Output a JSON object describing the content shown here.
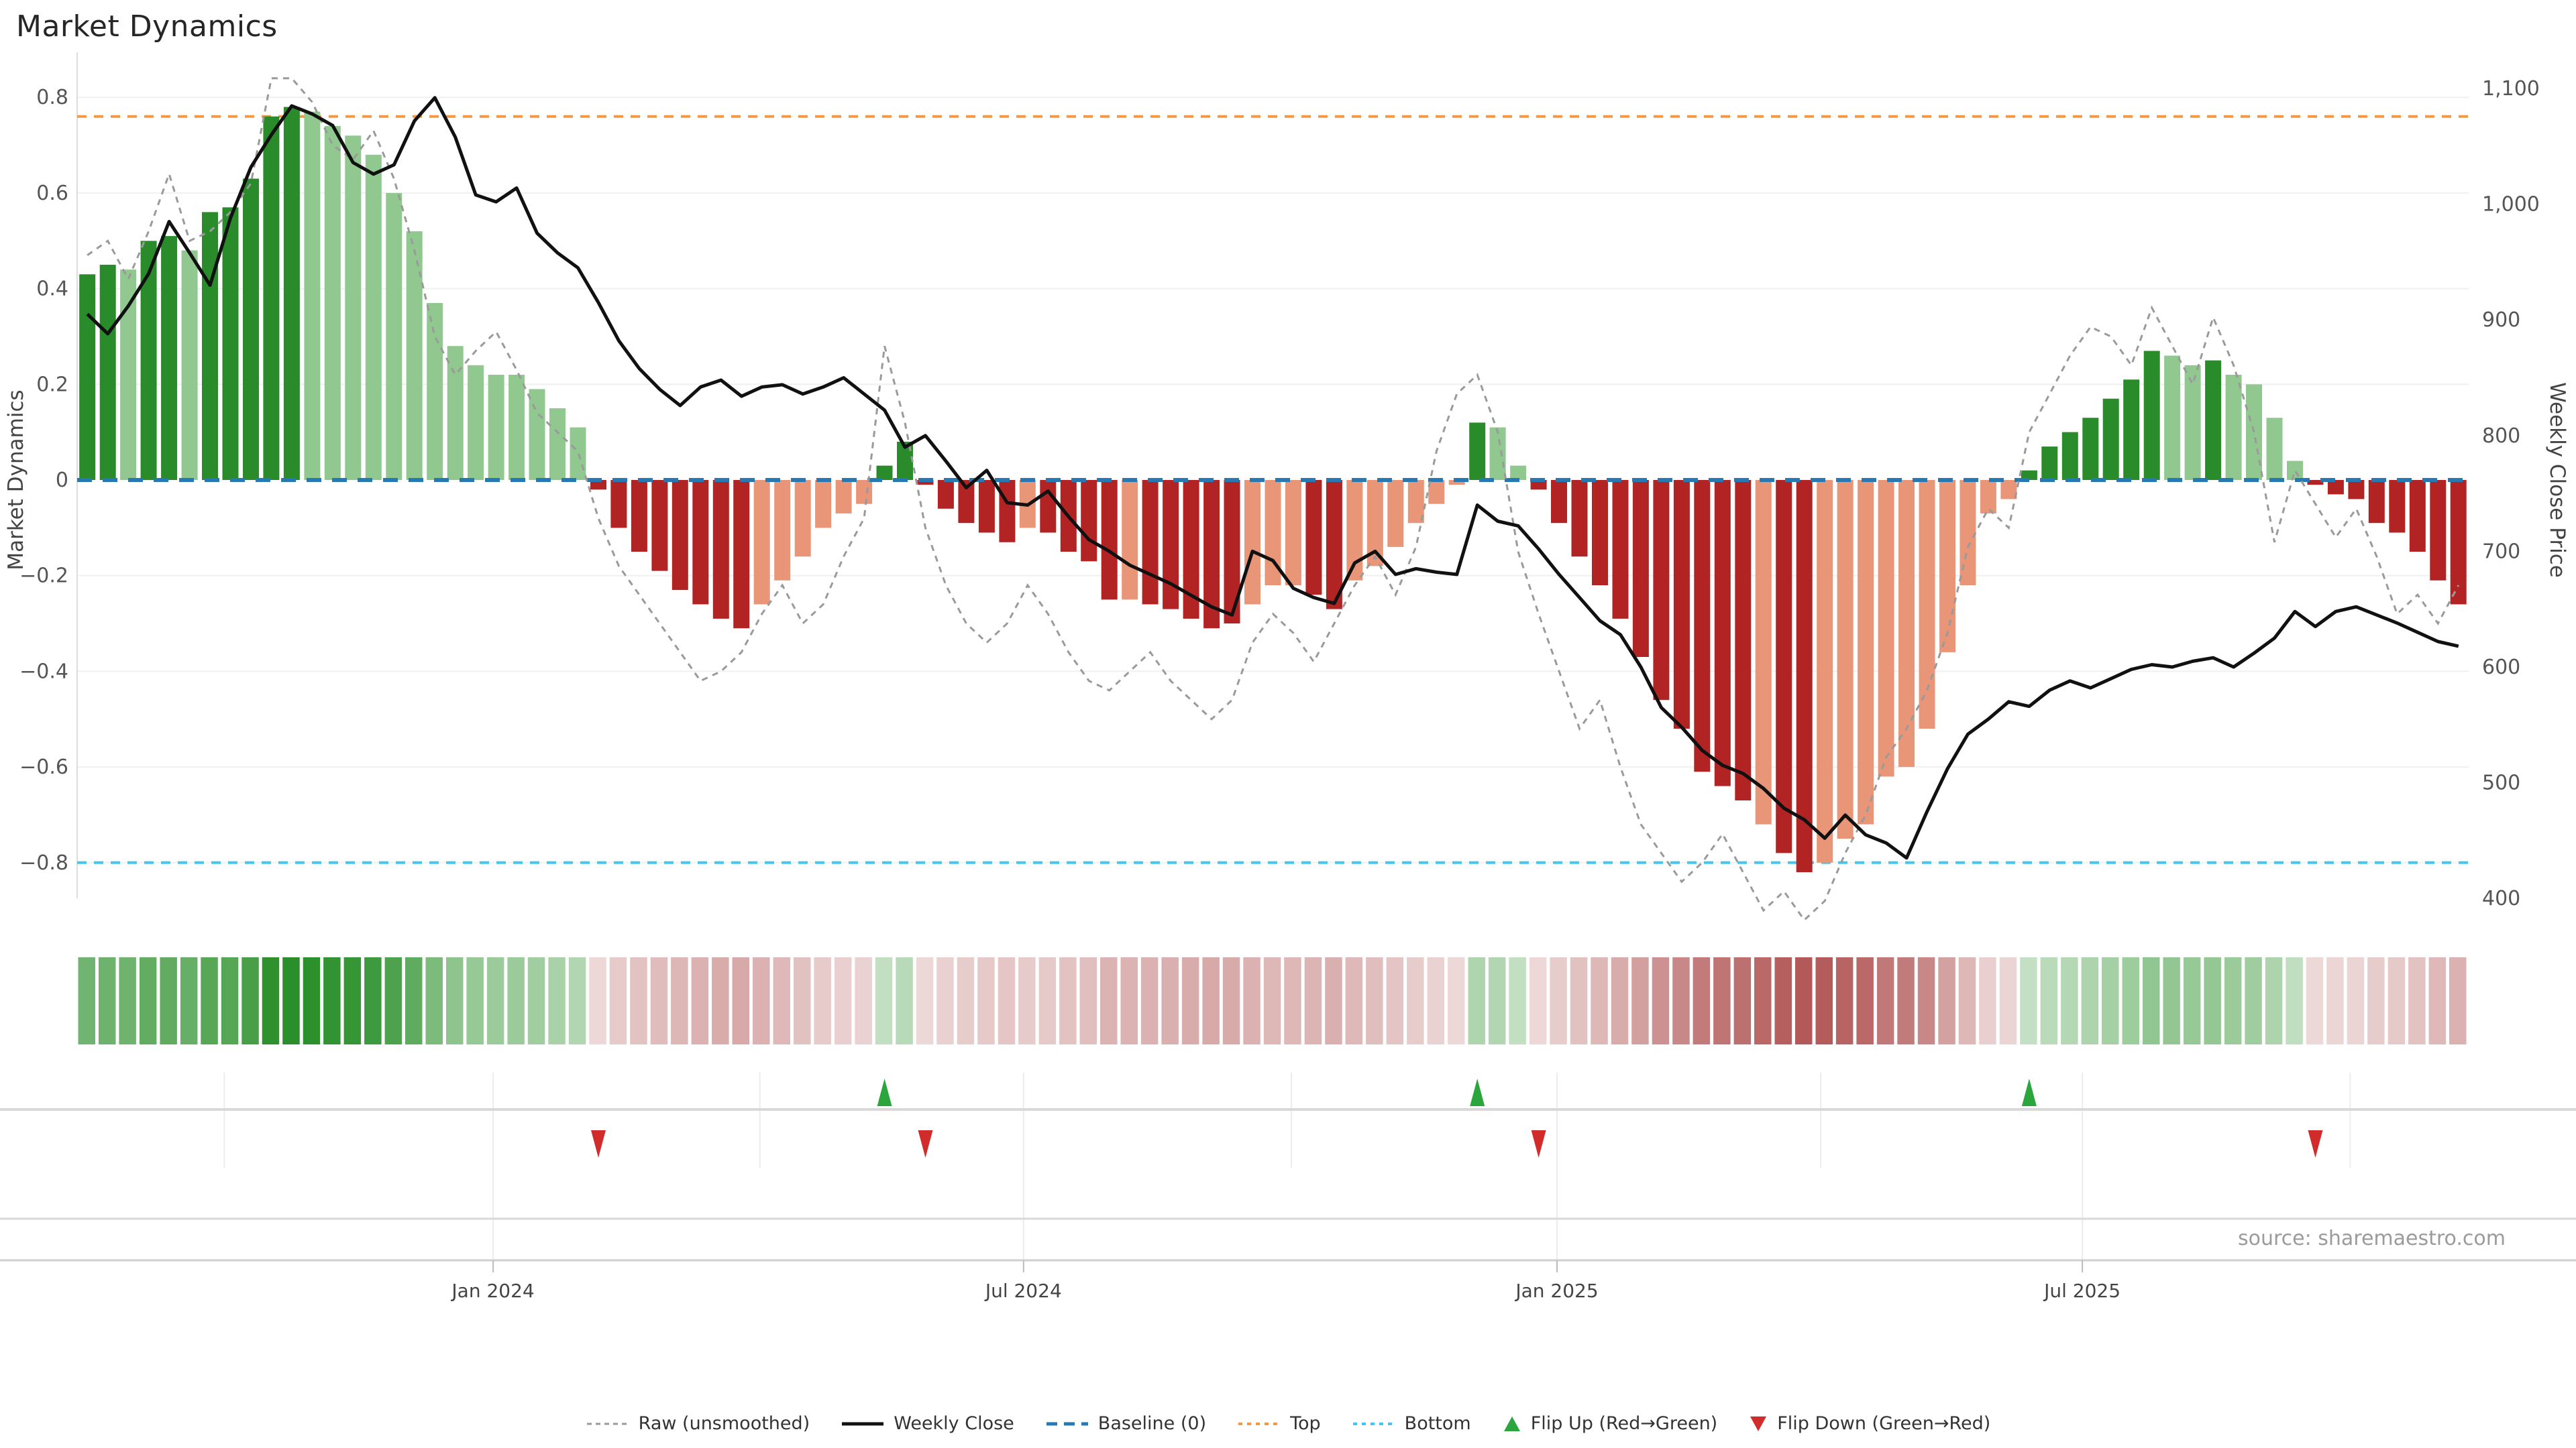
{
  "title": "Market Dynamics",
  "source_note": "source: sharemaestro.com",
  "axes": {
    "left": {
      "title": "Market Dynamics",
      "ticks": [
        {
          "v": 0.8,
          "label": "0.8"
        },
        {
          "v": 0.6,
          "label": "0.6"
        },
        {
          "v": 0.4,
          "label": "0.4"
        },
        {
          "v": 0.2,
          "label": "0.2"
        },
        {
          "v": 0.0,
          "label": "0"
        },
        {
          "v": -0.2,
          "label": "−0.2"
        },
        {
          "v": -0.4,
          "label": "−0.4"
        },
        {
          "v": -0.6,
          "label": "−0.6"
        },
        {
          "v": -0.8,
          "label": "−0.8"
        }
      ]
    },
    "right": {
      "title": "Weekly Close Price",
      "ticks": [
        {
          "p": 1100,
          "label": "1,100"
        },
        {
          "p": 1000,
          "label": "1,000"
        },
        {
          "p": 900,
          "label": "900"
        },
        {
          "p": 800,
          "label": "800"
        },
        {
          "p": 700,
          "label": "700"
        },
        {
          "p": 600,
          "label": "600"
        },
        {
          "p": 500,
          "label": "500"
        },
        {
          "p": 400,
          "label": "400"
        }
      ]
    },
    "x": {
      "labels": [
        {
          "week": 20.35,
          "label": "Jan 2024"
        },
        {
          "week": 46.3,
          "label": "Jul 2024"
        },
        {
          "week": 72.4,
          "label": "Jan 2025"
        },
        {
          "week": 98.1,
          "label": "Jul 2025"
        }
      ],
      "quarter_gridline_weeks": [
        7.2,
        20.35,
        33.4,
        46.3,
        59.4,
        72.4,
        85.3,
        98.1,
        111.2
      ]
    }
  },
  "colors": {
    "bar_green_dark": "#2a8b2a",
    "bar_green_light": "#90c890",
    "bar_red_dark": "#b22424",
    "bar_red_light": "#e99577",
    "close_line": "#111111",
    "raw_line": "#9a9a9a",
    "baseline": "#2779b4",
    "top_line": "#f39944",
    "bottom_line": "#41c7f0",
    "gridline": "#f0f0f0",
    "spine": "#dddddd",
    "panel_line": "#d8d8d8",
    "axis_line": "#cfcfcf",
    "tick_label": "#555555",
    "x_label": "#444444",
    "flip_up": "#2ba63c",
    "flip_down": "#d12b2b",
    "heat_green": [
      34,
      139,
      34
    ],
    "heat_red": [
      170,
      70,
      70
    ]
  },
  "legend": {
    "items": [
      {
        "key": "raw",
        "label": "Raw (unsmoothed)",
        "swatch": "line",
        "color": "#9a9a9a",
        "dash": "7 6",
        "lw": 3
      },
      {
        "key": "close",
        "label": "Weekly Close",
        "swatch": "line",
        "color": "#111111",
        "dash": "",
        "lw": 5
      },
      {
        "key": "baseline",
        "label": "Baseline (0)",
        "swatch": "line",
        "color": "#2779b4",
        "dash": "16 10",
        "lw": 5
      },
      {
        "key": "top",
        "label": "Top",
        "swatch": "line",
        "color": "#f39944",
        "dash": "6 7",
        "lw": 4
      },
      {
        "key": "bottom",
        "label": "Bottom",
        "swatch": "line",
        "color": "#41c7f0",
        "dash": "6 7",
        "lw": 4
      },
      {
        "key": "flip-up",
        "label": "Flip Up (Red→Green)",
        "swatch": "triangle-up",
        "color": "#2ba63c"
      },
      {
        "key": "flip-down",
        "label": "Flip Down (Green→Red)",
        "swatch": "triangle-down",
        "color": "#d12b2b"
      }
    ]
  },
  "chart_data": {
    "type": "bar+line",
    "description": "Weekly market-dynamics oscillator bars (left axis) with raw unsmoothed dashed series, weekly close price line (right axis), reference lines, heatmap strip and flip markers",
    "n_weeks": 117,
    "left_ylim": [
      -0.875,
      0.895
    ],
    "right_ylim": [
      400,
      1100
    ],
    "grid": "horizontal",
    "legend_position": "bottom",
    "reference_lines": {
      "baseline": 0,
      "top": 0.76,
      "bottom": -0.8
    },
    "flips": {
      "up_weeks": [
        39,
        68,
        95
      ],
      "down_weeks": [
        25,
        41,
        71,
        109
      ]
    },
    "oscillator_shade_segments": [
      "ddlddldddddllllllllllllll",
      "ddddddddllllll",
      "dd",
      "dddddlddddldddddlllddllllll",
      "dll",
      "dddddddddddlddllllllllll",
      "dddddddlldllll",
      "dddddddd"
    ],
    "oscillator_values": [
      0.43,
      0.45,
      0.44,
      0.5,
      0.51,
      0.48,
      0.56,
      0.57,
      0.63,
      0.76,
      0.78,
      0.77,
      0.74,
      0.72,
      0.68,
      0.6,
      0.52,
      0.37,
      0.28,
      0.24,
      0.22,
      0.22,
      0.19,
      0.15,
      0.11,
      -0.02,
      -0.1,
      -0.15,
      -0.19,
      -0.23,
      -0.26,
      -0.29,
      -0.31,
      -0.26,
      -0.21,
      -0.16,
      -0.1,
      -0.07,
      -0.05,
      0.03,
      0.08,
      -0.01,
      -0.06,
      -0.09,
      -0.11,
      -0.13,
      -0.1,
      -0.11,
      -0.15,
      -0.17,
      -0.25,
      -0.25,
      -0.26,
      -0.27,
      -0.29,
      -0.31,
      -0.3,
      -0.26,
      -0.22,
      -0.22,
      -0.24,
      -0.27,
      -0.21,
      -0.18,
      -0.14,
      -0.09,
      -0.05,
      -0.01,
      0.12,
      0.11,
      0.03,
      -0.02,
      -0.09,
      -0.16,
      -0.22,
      -0.29,
      -0.37,
      -0.46,
      -0.52,
      -0.61,
      -0.64,
      -0.67,
      -0.72,
      -0.78,
      -0.82,
      -0.8,
      -0.75,
      -0.72,
      -0.62,
      -0.6,
      -0.52,
      -0.36,
      -0.22,
      -0.07,
      -0.04,
      0.02,
      0.07,
      0.1,
      0.13,
      0.17,
      0.21,
      0.27,
      0.26,
      0.24,
      0.25,
      0.22,
      0.2,
      0.13,
      0.04,
      -0.01,
      -0.03,
      -0.04,
      -0.09,
      -0.11,
      -0.15,
      -0.21,
      -0.26
    ],
    "raw_values": [
      0.47,
      0.5,
      0.42,
      0.52,
      0.64,
      0.5,
      0.52,
      0.56,
      0.62,
      0.84,
      0.84,
      0.79,
      0.7,
      0.67,
      0.73,
      0.63,
      0.48,
      0.3,
      0.22,
      0.27,
      0.31,
      0.23,
      0.14,
      0.1,
      0.06,
      -0.08,
      -0.18,
      -0.24,
      -0.3,
      -0.36,
      -0.42,
      -0.4,
      -0.36,
      -0.28,
      -0.22,
      -0.3,
      -0.26,
      -0.16,
      -0.08,
      0.28,
      0.12,
      -0.1,
      -0.22,
      -0.3,
      -0.34,
      -0.3,
      -0.22,
      -0.28,
      -0.36,
      -0.42,
      -0.44,
      -0.4,
      -0.36,
      -0.42,
      -0.46,
      -0.5,
      -0.46,
      -0.34,
      -0.28,
      -0.32,
      -0.38,
      -0.3,
      -0.22,
      -0.16,
      -0.24,
      -0.14,
      0.06,
      0.18,
      0.22,
      0.1,
      -0.15,
      -0.28,
      -0.4,
      -0.52,
      -0.46,
      -0.6,
      -0.72,
      -0.78,
      -0.84,
      -0.8,
      -0.74,
      -0.82,
      -0.9,
      -0.86,
      -0.92,
      -0.88,
      -0.78,
      -0.7,
      -0.58,
      -0.52,
      -0.44,
      -0.32,
      -0.14,
      -0.06,
      -0.1,
      0.1,
      0.18,
      0.26,
      0.32,
      0.3,
      0.24,
      0.36,
      0.28,
      0.2,
      0.34,
      0.24,
      0.1,
      -0.13,
      0.02,
      -0.05,
      -0.12,
      -0.06,
      -0.16,
      -0.28,
      -0.24,
      -0.3,
      -0.22
    ],
    "close_values": [
      905,
      888,
      912,
      940,
      985,
      958,
      930,
      988,
      1032,
      1060,
      1085,
      1078,
      1068,
      1036,
      1026,
      1034,
      1072,
      1092,
      1058,
      1008,
      1002,
      1014,
      975,
      958,
      945,
      915,
      882,
      858,
      840,
      826,
      842,
      848,
      834,
      842,
      844,
      836,
      842,
      850,
      836,
      822,
      790,
      800,
      778,
      755,
      770,
      742,
      740,
      752,
      730,
      710,
      700,
      688,
      680,
      672,
      662,
      652,
      645,
      700,
      692,
      668,
      660,
      655,
      690,
      700,
      680,
      685,
      682,
      680,
      740,
      726,
      722,
      702,
      680,
      660,
      640,
      628,
      600,
      565,
      548,
      528,
      515,
      508,
      495,
      478,
      468,
      452,
      472,
      455,
      448,
      435,
      475,
      512,
      542,
      555,
      570,
      566,
      580,
      588,
      582,
      590,
      598,
      602,
      600,
      605,
      608,
      600,
      612,
      625,
      648,
      635,
      648,
      652,
      645,
      638,
      630,
      622,
      618
    ]
  }
}
